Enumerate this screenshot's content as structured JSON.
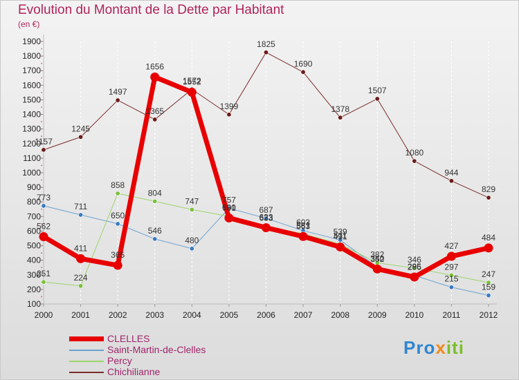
{
  "title": "Evolution du Montant de la Dette par Habitant",
  "subtitle": "(en €)",
  "logo": {
    "parts": [
      {
        "text": "Pro",
        "color": "#2e86d1"
      },
      {
        "text": "x",
        "color": "#f08a1c"
      },
      {
        "text": "iti",
        "color": "#7bbf2a"
      }
    ]
  },
  "chart_data": {
    "type": "line",
    "title": "Evolution du Montant de la Dette par Habitant",
    "subtitle": "(en €)",
    "x": [
      2000,
      2001,
      2002,
      2003,
      2004,
      2005,
      2006,
      2007,
      2008,
      2009,
      2010,
      2011,
      2012
    ],
    "x_tick_labels": [
      "2000",
      "2001",
      "2002",
      "2003",
      "2004",
      "2005",
      "2006",
      "2007",
      "2008",
      "2009",
      "2010",
      "2011",
      "2012"
    ],
    "ylim": [
      100,
      1900
    ],
    "y_ticks": [
      100,
      200,
      300,
      400,
      500,
      600,
      700,
      800,
      900,
      1000,
      1100,
      1200,
      1300,
      1400,
      1500,
      1600,
      1700,
      1800,
      1900
    ],
    "grid": "vertical",
    "legend_position": "bottom-left",
    "series": [
      {
        "name": "Chichilianne",
        "color": "#7a2a2a",
        "marker": "#6a1a1a",
        "line_width": 1,
        "values": [
          1157,
          1245,
          1497,
          1365,
          1572,
          1399,
          1825,
          1690,
          1378,
          1507,
          1080,
          944,
          829
        ],
        "labels": [
          "1157",
          "1245",
          "1497",
          "1365",
          "1572",
          "1399",
          "1825",
          "1690",
          "1378",
          "1507",
          "1080",
          "944",
          "829"
        ]
      },
      {
        "name": "Saint-Martin-de-Clelles",
        "color": "#6aa0d0",
        "marker": "#3a7ac0",
        "line_width": 1,
        "values": [
          773,
          711,
          650,
          546,
          480,
          757,
          687,
          603,
          539,
          352,
          296,
          215,
          159
        ],
        "labels": [
          "773",
          "711",
          "650",
          "546",
          "480",
          "757",
          "687",
          "603",
          "539",
          "352",
          "296",
          "215",
          "159"
        ]
      },
      {
        "name": "Percy",
        "color": "#9cd46a",
        "marker": "#7bbf3a",
        "line_width": 1,
        "values": [
          251,
          224,
          858,
          804,
          747,
          701,
          633,
          581,
          511,
          382,
          346,
          297,
          247
        ],
        "labels": [
          "251",
          "224",
          "858",
          "804",
          "747",
          "701",
          "633",
          "581",
          "511",
          "382",
          "346",
          "297",
          "247"
        ]
      },
      {
        "name": "CLELLES",
        "color": "#e80000",
        "marker": "#e80000",
        "line_width": 7,
        "values": [
          562,
          411,
          365,
          1656,
          1552,
          690,
          623,
          563,
          491,
          340,
          285,
          427,
          484
        ],
        "labels": [
          "562",
          "411",
          "365",
          "1656",
          "1552",
          "690",
          "623",
          "563",
          "491",
          "340",
          "285",
          "427",
          "484"
        ]
      }
    ],
    "legend": [
      "CLELLES",
      "Saint-Martin-de-Clelles",
      "Percy",
      "Chichilianne"
    ]
  }
}
